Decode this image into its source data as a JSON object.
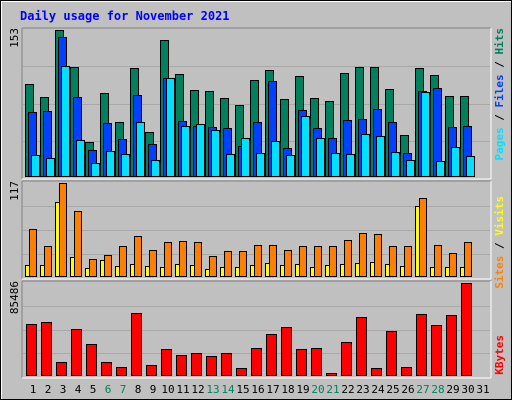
{
  "title": "Daily usage for November 2021",
  "colors": {
    "background": "#C0C0C0",
    "hits": "#00805C",
    "files": "#0040FF",
    "pages": "#00E0FF",
    "visits": "#FFFF00",
    "sites": "#FF8000",
    "kbytes": "#FF0000",
    "weekend_label": "#00805C",
    "weekday_label": "#000000",
    "title": "#0000FF"
  },
  "chart_data": [
    {
      "type": "bar",
      "name": "hits-files-pages",
      "max_label": "153",
      "ylim": [
        0,
        153
      ],
      "side_labels": [
        "Pages",
        "Files",
        "Hits"
      ],
      "categories": [
        "1",
        "2",
        "3",
        "4",
        "5",
        "6",
        "7",
        "8",
        "9",
        "10",
        "11",
        "12",
        "13",
        "14",
        "15",
        "16",
        "17",
        "18",
        "19",
        "20",
        "21",
        "22",
        "23",
        "24",
        "25",
        "26",
        "27",
        "28",
        "29",
        "30",
        "31"
      ],
      "weekend_days": [
        6,
        7,
        13,
        14,
        20,
        21,
        27,
        28
      ],
      "series": [
        {
          "name": "Hits",
          "values": [
            97,
            83,
            153,
            114,
            36,
            87,
            57,
            113,
            47,
            143,
            107,
            91,
            90,
            82,
            75,
            101,
            111,
            81,
            105,
            82,
            79,
            108,
            114,
            114,
            92,
            44,
            113,
            106,
            84,
            84,
            0
          ]
        },
        {
          "name": "Files",
          "values": [
            68,
            69,
            146,
            83,
            28,
            56,
            40,
            85,
            34,
            103,
            58,
            53,
            52,
            51,
            32,
            57,
            100,
            30,
            70,
            51,
            41,
            59,
            60,
            71,
            57,
            25,
            89,
            93,
            52,
            53,
            0
          ]
        },
        {
          "name": "Pages",
          "values": [
            23,
            20,
            116,
            39,
            15,
            27,
            24,
            57,
            18,
            103,
            53,
            55,
            49,
            24,
            41,
            25,
            37,
            23,
            64,
            41,
            25,
            24,
            45,
            43,
            26,
            18,
            88,
            17,
            31,
            22,
            0
          ]
        }
      ]
    },
    {
      "type": "bar",
      "name": "visits-sites",
      "max_label": "117",
      "ylim": [
        0,
        117
      ],
      "side_labels": [
        "Sites",
        "Visits"
      ],
      "categories": [
        "1",
        "2",
        "3",
        "4",
        "5",
        "6",
        "7",
        "8",
        "9",
        "10",
        "11",
        "12",
        "13",
        "14",
        "15",
        "16",
        "17",
        "18",
        "19",
        "20",
        "21",
        "22",
        "23",
        "24",
        "25",
        "26",
        "27",
        "28",
        "29",
        "30",
        "31"
      ],
      "series": [
        {
          "name": "Visits",
          "values": [
            15,
            15,
            93,
            25,
            11,
            21,
            14,
            16,
            14,
            13,
            16,
            15,
            10,
            12,
            13,
            15,
            18,
            15,
            16,
            13,
            15,
            16,
            17,
            19,
            16,
            14,
            88,
            12,
            12,
            13,
            0
          ]
        },
        {
          "name": "Sites",
          "values": [
            60,
            38,
            117,
            82,
            23,
            28,
            38,
            51,
            34,
            44,
            45,
            44,
            26,
            32,
            32,
            40,
            40,
            34,
            38,
            38,
            38,
            46,
            55,
            54,
            38,
            38,
            98,
            40,
            30,
            44,
            0
          ]
        }
      ]
    },
    {
      "type": "bar",
      "name": "kbytes",
      "max_label": "85486",
      "ylim": [
        0,
        85486
      ],
      "side_labels": [
        "KBytes"
      ],
      "categories": [
        "1",
        "2",
        "3",
        "4",
        "5",
        "6",
        "7",
        "8",
        "9",
        "10",
        "11",
        "12",
        "13",
        "14",
        "15",
        "16",
        "17",
        "18",
        "19",
        "20",
        "21",
        "22",
        "23",
        "24",
        "25",
        "26",
        "27",
        "28",
        "29",
        "30",
        "31"
      ],
      "series": [
        {
          "name": "KBytes",
          "values": [
            48000,
            50000,
            13000,
            43000,
            29000,
            13000,
            8000,
            58000,
            10000,
            25000,
            19000,
            21000,
            18000,
            21000,
            7000,
            26000,
            39000,
            45000,
            25000,
            26000,
            3000,
            31000,
            54000,
            7000,
            41000,
            8000,
            57000,
            47000,
            56000,
            85486,
            0
          ]
        }
      ]
    }
  ]
}
